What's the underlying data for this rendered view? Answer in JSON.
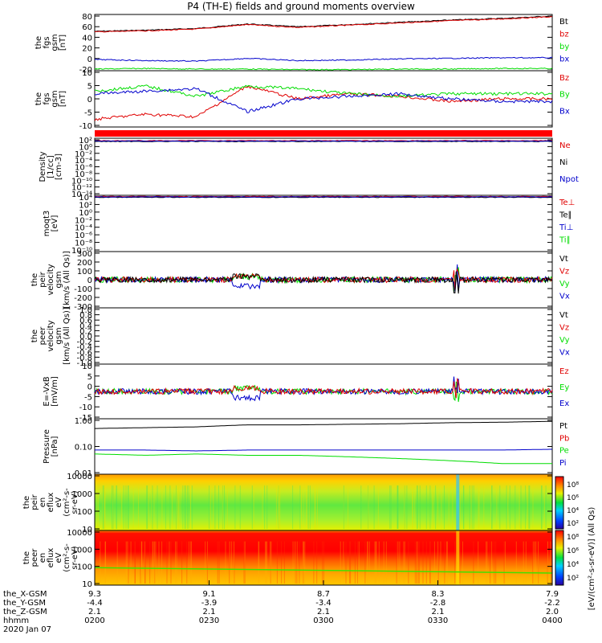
{
  "title": "P4 (TH-E) fields and ground moments overview",
  "colors": {
    "black": "#000000",
    "red": "#e00000",
    "green": "#00dd00",
    "blue": "#0000cc"
  },
  "panels": [
    {
      "id": "fgs-gsm-tot",
      "ylabel": [
        "the",
        "fgs",
        "gsm",
        "[nT]"
      ],
      "yticks": [
        "80",
        "60",
        "40",
        "20",
        "0",
        "-20"
      ],
      "legend": [
        {
          "text": "Bt",
          "color": "black"
        },
        {
          "text": "bz",
          "color": "red"
        },
        {
          "text": "by",
          "color": "green"
        },
        {
          "text": "bx",
          "color": "blue"
        }
      ]
    },
    {
      "id": "fgs-gsm",
      "ylabel": [
        "the",
        "fgs",
        "gsm",
        "[nT]"
      ],
      "yticks": [
        "10",
        "5",
        "0",
        "-5",
        "-10"
      ],
      "legend": [
        {
          "text": "Bz",
          "color": "red"
        },
        {
          "text": "By",
          "color": "green"
        },
        {
          "text": "Bx",
          "color": "blue"
        }
      ]
    },
    {
      "id": "density",
      "ylabel": [
        "Density",
        "[1/cc]",
        "[cm-3]"
      ],
      "yticks": [
        "10²",
        "10⁰",
        "10⁻²",
        "10⁻⁴",
        "10⁻⁶",
        "10⁻⁸",
        "10⁻¹⁰",
        "10⁻¹²",
        "10⁻¹⁴"
      ],
      "legend": [
        {
          "text": "Ne",
          "color": "red"
        },
        {
          "text": "Ni",
          "color": "black"
        },
        {
          "text": "Npot",
          "color": "blue"
        }
      ]
    },
    {
      "id": "temperature",
      "ylabel": [
        "moqt3",
        "[eV]"
      ],
      "yticks": [
        "10⁴",
        "10²",
        "10⁰",
        "10⁻²",
        "10⁻⁴",
        "10⁻⁶",
        "10⁻⁸",
        "10⁻¹⁰"
      ],
      "legend": [
        {
          "text": "Te⊥",
          "color": "red"
        },
        {
          "text": "Te∥",
          "color": "black"
        },
        {
          "text": "Ti⊥",
          "color": "blue"
        },
        {
          "text": "Ti∥",
          "color": "green"
        }
      ]
    },
    {
      "id": "peir-velocity",
      "ylabel": [
        "the",
        "peir",
        "velocity",
        "gsm",
        "[km/s (All Qs)]"
      ],
      "yticks": [
        "300",
        "200",
        "100",
        "0",
        "-100",
        "-200",
        "-300"
      ],
      "legend": [
        {
          "text": "Vt",
          "color": "black"
        },
        {
          "text": "Vz",
          "color": "red"
        },
        {
          "text": "Vy",
          "color": "green"
        },
        {
          "text": "Vx",
          "color": "blue"
        }
      ]
    },
    {
      "id": "peer-velocity",
      "ylabel": [
        "the",
        "peer",
        "velocity",
        "gsm",
        "[km/s (All Qs)]"
      ],
      "yticks": [
        "1.0",
        "0.8",
        "0.6",
        "0.4",
        "0.2",
        "0.0",
        "-0.2",
        "-0.4",
        "-0.6",
        "-0.8",
        "-1.0"
      ],
      "legend": [
        {
          "text": "Vt",
          "color": "black"
        },
        {
          "text": "Vz",
          "color": "red"
        },
        {
          "text": "Vy",
          "color": "green"
        },
        {
          "text": "Vx",
          "color": "blue"
        }
      ]
    },
    {
      "id": "e-field",
      "ylabel": [
        "E=-VxB",
        "[mV/m]"
      ],
      "yticks": [
        "10",
        "5",
        "0",
        "-5",
        "-10",
        "-15"
      ],
      "legend": [
        {
          "text": "Ez",
          "color": "red"
        },
        {
          "text": "Ey",
          "color": "green"
        },
        {
          "text": "Ex",
          "color": "blue"
        }
      ]
    },
    {
      "id": "pressure",
      "ylabel": [
        "Pressure",
        "[nPa]"
      ],
      "yticks": [
        "1.00",
        "0.10",
        "0.01"
      ],
      "legend": [
        {
          "text": "Pt",
          "color": "black"
        },
        {
          "text": "Pb",
          "color": "red"
        },
        {
          "text": "Pe",
          "color": "green"
        },
        {
          "text": "Pi",
          "color": "blue"
        }
      ]
    },
    {
      "id": "peir-spec",
      "ylabel": [
        "the",
        "peir",
        "en",
        "eflux",
        "eV",
        "(cm²-s-",
        "sr-eV)"
      ],
      "yticks": [
        "10000",
        "1000",
        "100",
        "10"
      ],
      "legend": []
    },
    {
      "id": "peer-spec",
      "ylabel": [
        "the",
        "peer",
        "en",
        "eflux",
        "eV",
        "(cm²-s-",
        "sr-eV)"
      ],
      "yticks": [
        "10000",
        "1000",
        "100",
        "10"
      ],
      "legend": []
    }
  ],
  "colorbar": {
    "label": "[eV/(cm²-s-sr-eV)] (All Qs)",
    "ticks_top": [
      "10⁸",
      "10⁶",
      "10⁴",
      "10²"
    ],
    "ticks_bottom": [
      "10⁸",
      "10⁶",
      "10⁴",
      "10²"
    ]
  },
  "xaxis": {
    "rows": [
      {
        "label": "the_X-GSM",
        "values": [
          "9.3",
          "9.1",
          "8.7",
          "8.3",
          "7.9"
        ]
      },
      {
        "label": "the_Y-GSM",
        "values": [
          "-4.4",
          "-3.9",
          "-3.4",
          "-2.8",
          "-2.2"
        ]
      },
      {
        "label": "the_Z-GSM",
        "values": [
          "2.1",
          "2.1",
          "2.1",
          "2.1",
          "2.0"
        ]
      },
      {
        "label": "hhmm",
        "values": [
          "0200",
          "0230",
          "0300",
          "0330",
          "0400"
        ]
      }
    ],
    "date": "2020 Jan 07"
  },
  "chart_data": {
    "type": "line",
    "time_range": [
      "0200",
      "0400"
    ],
    "series": [
      {
        "panel": "fgs-gsm-tot",
        "name": "Bt",
        "values": [
          50,
          52,
          55,
          63,
          58,
          62,
          66,
          70,
          73,
          77
        ]
      },
      {
        "panel": "fgs-gsm-tot",
        "name": "bz",
        "values": [
          49,
          51,
          54,
          62,
          57,
          61,
          65,
          69,
          72,
          76
        ]
      },
      {
        "panel": "fgs-gsm-tot",
        "name": "by",
        "values": [
          -17,
          -16,
          -17,
          -17,
          -18,
          -18,
          -17,
          -17,
          -16,
          -16
        ]
      },
      {
        "panel": "fgs-gsm-tot",
        "name": "bx",
        "values": [
          0,
          -2,
          -3,
          2,
          -2,
          -1,
          1,
          2,
          3,
          3
        ]
      },
      {
        "panel": "fgs-gsm",
        "name": "Bz",
        "values": [
          -9,
          -7,
          -8,
          4,
          -1,
          1,
          0,
          -2,
          -1,
          -1
        ]
      },
      {
        "panel": "fgs-gsm",
        "name": "By",
        "values": [
          2,
          4,
          0,
          4,
          3,
          1,
          0,
          1,
          1,
          1
        ]
      },
      {
        "panel": "fgs-gsm",
        "name": "Bx",
        "values": [
          1,
          2,
          3,
          -6,
          -1,
          0,
          1,
          -1,
          -2,
          -2
        ]
      },
      {
        "panel": "pressure",
        "name": "Pt",
        "values": [
          1.1,
          1.2,
          1.3,
          1.6,
          1.6,
          1.7,
          1.8,
          2.0,
          2.1,
          2.3
        ]
      },
      {
        "panel": "pressure",
        "name": "Pe",
        "values": [
          0.08,
          0.07,
          0.08,
          0.07,
          0.07,
          0.06,
          0.05,
          0.04,
          0.03,
          0.03
        ]
      },
      {
        "panel": "pressure",
        "name": "Pi",
        "values": [
          0.12,
          0.12,
          0.11,
          0.12,
          0.12,
          0.12,
          0.12,
          0.12,
          0.12,
          0.13
        ]
      }
    ]
  }
}
